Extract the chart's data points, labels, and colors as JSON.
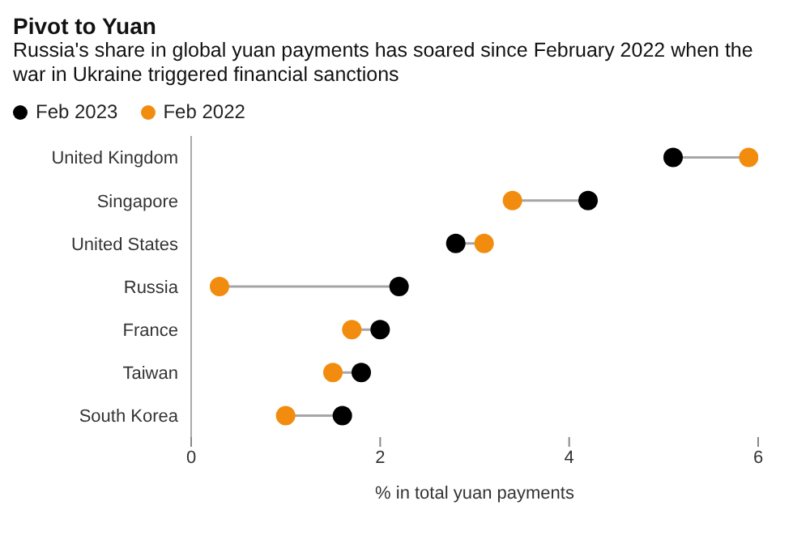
{
  "chart_data": {
    "type": "scatter",
    "orientation": "horizontal",
    "title": "Pivot to Yuan",
    "subtitle": "Russia's share in global yuan payments has soared since February 2022 when the war in Ukraine triggered financial sanctions",
    "xlabel": "% in total yuan payments",
    "categories": [
      "United Kingdom",
      "Singapore",
      "United States",
      "Russia",
      "France",
      "Taiwan",
      "South Korea"
    ],
    "series": [
      {
        "name": "Feb 2023",
        "color": "#000000",
        "values": [
          5.1,
          4.2,
          2.8,
          2.2,
          2.0,
          1.8,
          1.6
        ]
      },
      {
        "name": "Feb 2022",
        "color": "#f28c0f",
        "values": [
          5.9,
          3.4,
          3.1,
          0.3,
          1.7,
          1.5,
          1.0
        ]
      }
    ],
    "xlim": [
      0,
      6
    ],
    "xticks": [
      0,
      2,
      4,
      6
    ],
    "legend": "top left",
    "marker": "circle"
  }
}
